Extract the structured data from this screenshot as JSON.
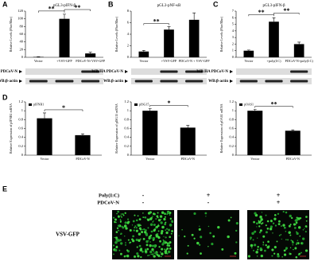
{
  "chart_data": [
    {
      "type": "bar",
      "title": "pGL3-pIFN-β",
      "y_label": "Relative Levels (Fluc/Rluc)",
      "categories": [
        "Vector",
        "+VSV-GFP",
        "PDCoV-N+VSV-GFP"
      ],
      "values": [
        1,
        100,
        10
      ],
      "errors": [
        0.5,
        12,
        3
      ],
      "color": "#000000",
      "ylim": [
        0,
        120
      ],
      "yticks": [
        0,
        20,
        40,
        60,
        80,
        100,
        120
      ],
      "annotations": [
        {
          "text": "**",
          "between": [
            "Vector",
            "+VSV-GFP"
          ]
        },
        {
          "text": "**",
          "between": [
            "+VSV-GFP",
            "PDCoV-N+VSV-GFP"
          ]
        }
      ]
    },
    {
      "type": "bar",
      "title": "pGL3-pNF-κB",
      "y_label": "Relative Levels (Fluc/Rluc)",
      "categories": [
        "Vector",
        "+VSV-GFP",
        "PDCoV-N + VSV-GFP"
      ],
      "values": [
        1,
        4.8,
        6.5
      ],
      "errors": [
        0.2,
        0.5,
        1.2
      ],
      "color": "#000000",
      "ylim": [
        0,
        8
      ],
      "yticks": [
        0,
        2,
        4,
        6,
        8
      ],
      "annotations": [
        {
          "text": "**",
          "between": [
            "Vector",
            "+VSV-GFP"
          ]
        }
      ]
    },
    {
      "type": "bar",
      "title": "pGL3-pIFN-β",
      "y_label": "Relative Levels (Fluc/Rluc)",
      "categories": [
        "Vector",
        "+poly(I:C)",
        "PDCoV-N+poly(I:C)"
      ],
      "values": [
        1,
        5.4,
        2
      ],
      "errors": [
        0.1,
        0.6,
        0.3
      ],
      "color": "#000000",
      "ylim": [
        0,
        7
      ],
      "yticks": [
        0,
        1,
        2,
        3,
        4,
        5,
        6,
        7
      ],
      "annotations": [
        {
          "text": "**",
          "between": [
            "Vector",
            "+poly(I:C)"
          ]
        },
        {
          "text": "**",
          "between": [
            "+poly(I:C)",
            "PDCoV-N+poly(I:C)"
          ]
        }
      ]
    },
    {
      "type": "bar",
      "y_label": "Relative Expression of pIFNB1 mRNA",
      "categories": [
        "Vector",
        "PDCoV-N"
      ],
      "series": [
        {
          "name": "pIFNB1",
          "color": "#000000",
          "values": [
            0.83,
            0.45
          ],
          "errors": [
            0.12,
            0.03
          ]
        }
      ],
      "ylim": [
        0,
        1.2
      ],
      "yticks": [
        0,
        0.2,
        0.4,
        0.6,
        0.8,
        1,
        1.2
      ],
      "annotations": [
        {
          "text": "*",
          "between": [
            "Vector",
            "PDCoV-N"
          ]
        }
      ]
    },
    {
      "type": "bar",
      "y_label": "Relative Expression of pISG15 mRNA",
      "categories": [
        "Vector",
        "PDCoV-N"
      ],
      "series": [
        {
          "name": "pISG15",
          "color": "#000000",
          "values": [
            1,
            0.62
          ],
          "errors": [
            0.05,
            0.05
          ]
        }
      ],
      "ylim": [
        0,
        1.2
      ],
      "yticks": [
        0,
        0.2,
        0.4,
        0.6,
        0.8,
        1,
        1.2
      ],
      "annotations": [
        {
          "text": "*",
          "between": [
            "Vector",
            "PDCoV-N"
          ]
        }
      ]
    },
    {
      "type": "bar",
      "y_label": "Relative Expression of pOAS1 mRNA",
      "categories": [
        "Vector",
        "PDCoV-N"
      ],
      "series": [
        {
          "name": "pOAS1",
          "color": "#000000",
          "values": [
            1,
            0.55
          ],
          "errors": [
            0.03,
            0.02
          ]
        }
      ],
      "ylim": [
        0,
        1.2
      ],
      "yticks": [
        0,
        0.2,
        0.4,
        0.6,
        0.8,
        1,
        1.2
      ],
      "annotations": [
        {
          "text": "**",
          "between": [
            "Vector",
            "PDCoV-N"
          ]
        }
      ]
    }
  ],
  "figure": {
    "panel_labels": [
      "A",
      "B",
      "C",
      "D",
      "E"
    ],
    "blots": [
      [
        "WB:HA PDCoV-N",
        "WB:β-actin"
      ],
      [
        "WB:HA PDCoV-N",
        "WB:β-actin"
      ],
      [
        "WB:HA PDCoV-N",
        "WB:β-actin"
      ]
    ],
    "microscopy": {
      "row_labels": [
        "Poly(I:C)",
        "PDCoV-N"
      ],
      "signs": [
        [
          "-",
          "+",
          "+"
        ],
        [
          "-",
          "-",
          "+"
        ]
      ],
      "image_label": "VSV-GFP"
    }
  }
}
